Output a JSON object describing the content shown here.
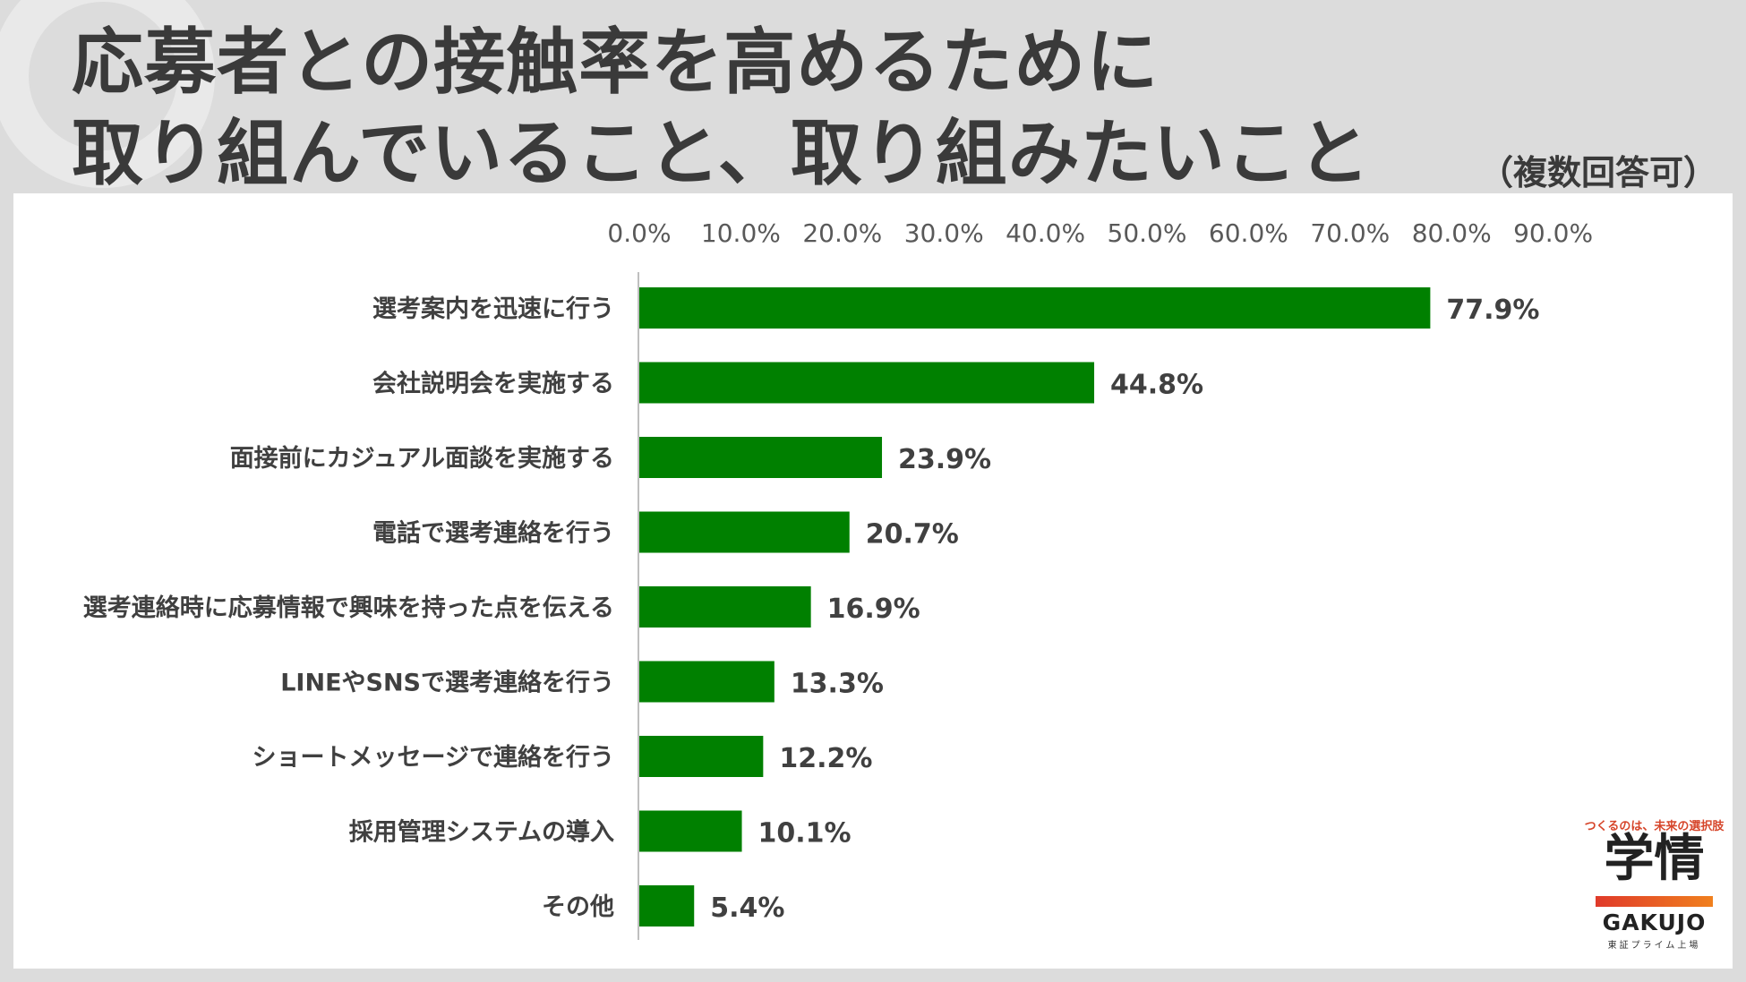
{
  "header": {
    "title_line1": "応募者との接触率を高めるために",
    "title_line2": "取り組んでいること、取り組みたいこと",
    "note": "（複数回答可）"
  },
  "brand": {
    "tagline": "つくるのは、未来の選択肢",
    "name_kanji": "学情",
    "name_en": "GAKUJO",
    "listing": "東証プライム上場"
  },
  "colors": {
    "bar": "#008000",
    "title": "#3a3a3a",
    "background": "#dcdcdc",
    "panel": "#ffffff"
  },
  "chart_data": {
    "type": "bar",
    "orientation": "horizontal",
    "categories": [
      "選考案内を迅速に行う",
      "会社説明会を実施する",
      "面接前にカジュアル面談を実施する",
      "電話で選考連絡を行う",
      "選考連絡時に応募情報で興味を持った点を伝える",
      "LINEやSNSで選考連絡を行う",
      "ショートメッセージで連絡を行う",
      "採用管理システムの導入",
      "その他"
    ],
    "values": [
      77.9,
      44.8,
      23.9,
      20.7,
      16.9,
      13.3,
      12.2,
      10.1,
      5.4
    ],
    "value_labels": [
      "77.9%",
      "44.8%",
      "23.9%",
      "20.7%",
      "16.9%",
      "13.3%",
      "12.2%",
      "10.1%",
      "5.4%"
    ],
    "xlim": [
      0,
      90
    ],
    "xticks": [
      "0.0%",
      "10.0%",
      "20.0%",
      "30.0%",
      "40.0%",
      "50.0%",
      "60.0%",
      "70.0%",
      "80.0%",
      "90.0%"
    ],
    "axis_position": "top",
    "grid": false,
    "legend": "none"
  }
}
